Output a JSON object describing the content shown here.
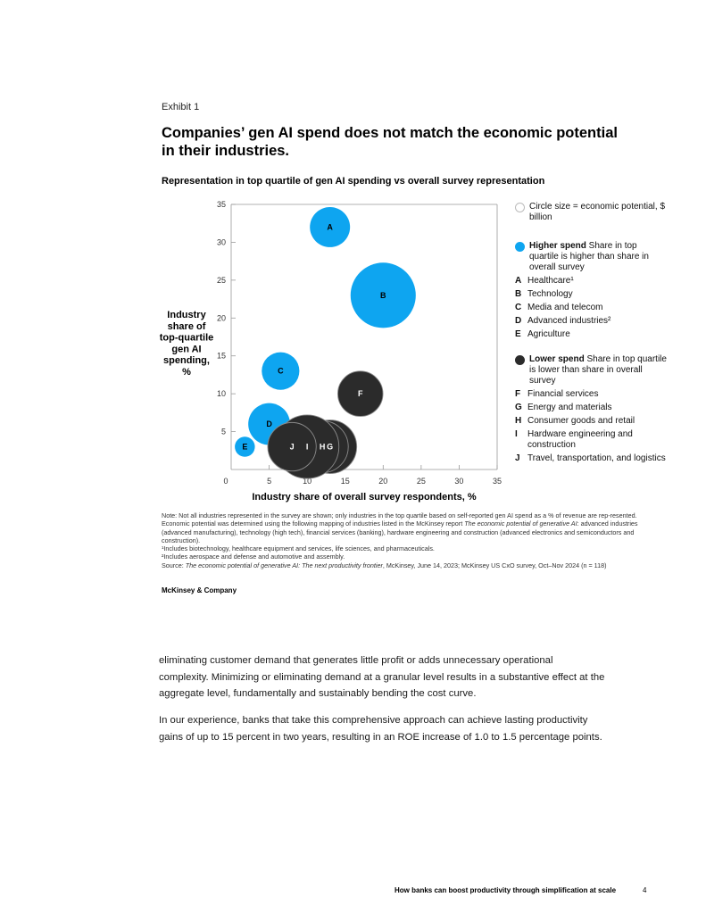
{
  "exhibit": {
    "label": "Exhibit 1",
    "title": "Companies’ gen AI spend does not match the economic potential in their industries.",
    "subtitle": "Representation in top quartile of gen AI spending vs overall survey representation"
  },
  "colors": {
    "higher": "#0ea5f0",
    "lower": "#2b2b2b",
    "axis": "#999999"
  },
  "chart_data": {
    "type": "scatter",
    "subtype": "bubble",
    "xlabel": "Industry share of overall survey respondents, %",
    "ylabel_lines": [
      "Industry",
      "share of",
      "top-quartile",
      "gen AI",
      "spending,",
      "%"
    ],
    "xlim": [
      0,
      35
    ],
    "ylim": [
      0,
      35
    ],
    "x_ticks": [
      0,
      5,
      10,
      15,
      20,
      25,
      30,
      35
    ],
    "y_ticks": [
      5,
      10,
      15,
      20,
      25,
      30,
      35
    ],
    "size_note": "Circle size = economic potential, $ billion",
    "points": [
      {
        "label": "A",
        "x": 13.0,
        "y": 32.0,
        "size": 4.8,
        "group": "higher"
      },
      {
        "label": "B",
        "x": 20.0,
        "y": 23.0,
        "size": 7.8,
        "group": "higher"
      },
      {
        "label": "C",
        "x": 6.5,
        "y": 13.0,
        "size": 4.5,
        "group": "higher"
      },
      {
        "label": "D",
        "x": 5.0,
        "y": 6.0,
        "size": 5.0,
        "group": "higher"
      },
      {
        "label": "E",
        "x": 1.8,
        "y": 3.0,
        "size": 2.4,
        "group": "higher"
      },
      {
        "label": "F",
        "x": 17.0,
        "y": 10.0,
        "size": 5.4,
        "group": "lower"
      },
      {
        "label": "G",
        "x": 13.0,
        "y": 3.0,
        "size": 6.4,
        "group": "lower"
      },
      {
        "label": "H",
        "x": 12.0,
        "y": 3.0,
        "size": 6.2,
        "group": "lower"
      },
      {
        "label": "I",
        "x": 10.0,
        "y": 3.0,
        "size": 7.6,
        "group": "lower"
      },
      {
        "label": "J",
        "x": 8.0,
        "y": 3.0,
        "size": 5.8,
        "group": "lower"
      }
    ]
  },
  "legend": {
    "size_text": "Circle size = economic potential, $ billion",
    "higher_heading": "Higher spend",
    "higher_desc": " Share in top quartile is higher than share in overall survey",
    "higher_items": [
      {
        "letter": "A",
        "name": "Healthcare¹"
      },
      {
        "letter": "B",
        "name": "Technology"
      },
      {
        "letter": "C",
        "name": "Media and telecom"
      },
      {
        "letter": "D",
        "name": "Advanced industries²"
      },
      {
        "letter": "E",
        "name": "Agriculture"
      }
    ],
    "lower_heading": "Lower spend",
    "lower_desc": " Share in top quartile is lower than share in overall survey",
    "lower_items": [
      {
        "letter": "F",
        "name": "Financial services"
      },
      {
        "letter": "G",
        "name": "Energy and materials"
      },
      {
        "letter": "H",
        "name": "Consumer goods and retail"
      },
      {
        "letter": "I",
        "name": "Hardware engineering and construction"
      },
      {
        "letter": "J",
        "name": "Travel, transportation, and logistics"
      }
    ]
  },
  "notes": {
    "note_a": "Note: Not all industries represented in the survey are shown; only industries in the top quartile based on self-reported gen AI spend as a % of revenue are rep-resented. Economic potential was determined using the following mapping of industries listed in the McKinsey report ",
    "note_italic": "The economic potential of generative AI",
    "note_b": ": advanced industries (advanced manufacturing), technology (high tech), financial services (banking), hardware engineering and construction (advanced electronics and semiconductors and construction).",
    "footnote1": "¹Includes biotechnology, healthcare equipment and services, life sciences, and pharmaceuticals.",
    "footnote2": "²Includes aerospace and defense and automotive and assembly.",
    "source_prefix": "Source: ",
    "source_italic": "The economic potential of generative AI: The next productivity frontier",
    "source_rest": ", McKinsey, June 14, 2023; McKinsey US CxO survey, Oct–Nov 2024 (n = 118)"
  },
  "brand": "McKinsey & Company",
  "body": {
    "para1": "eliminating customer demand that generates little profit or adds unnecessary operational complexity. Minimizing or eliminating demand at a granular level results in a substantive effect at the aggregate level, fundamentally and sustainably bending the cost curve.",
    "para2": "In our experience, banks that take this comprehensive approach can achieve lasting productivity gains of up to 15 percent in two years, resulting in an ROE increase of 1.0 to 1.5 percentage points."
  },
  "footer": {
    "title": "How banks can boost productivity through simplification at scale",
    "page": "4"
  }
}
